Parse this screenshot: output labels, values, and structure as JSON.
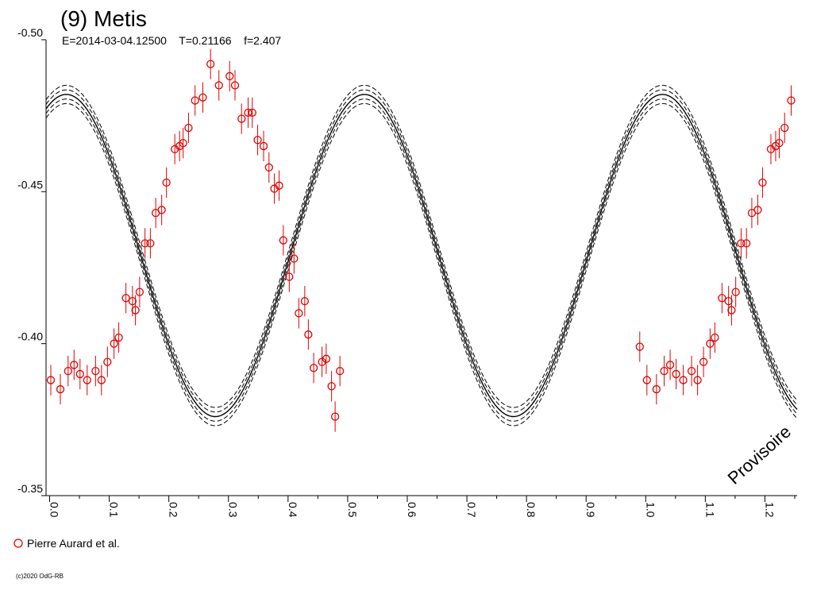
{
  "chart_data": {
    "type": "scatter",
    "title": "(9) Metis",
    "subtitle": "E=2014-03-04.12500    T=0.21166    f=2.407",
    "watermark": "Provisoire",
    "copyright": "(c)2020 OdG-RB",
    "xlim": [
      -0.006,
      1.254
    ],
    "ylim": [
      -0.5,
      -0.35
    ],
    "y_reversed": true,
    "yticks": [
      "-0.50",
      "-0.45",
      "-0.40",
      "-0.35"
    ],
    "ytick_values": [
      -0.5,
      -0.45,
      -0.4,
      -0.35
    ],
    "xticks": [
      "0.0",
      "0.1",
      "0.2",
      "0.3",
      "0.4",
      "0.5",
      "0.6",
      "0.7",
      "0.8",
      "0.9",
      "1.0",
      "1.1",
      "1.2"
    ],
    "xtick_values": [
      0.0,
      0.1,
      0.2,
      0.3,
      0.4,
      0.5,
      0.6,
      0.7,
      0.8,
      0.9,
      1.0,
      1.1,
      1.2
    ],
    "grid": false,
    "legend_position": "bottom-left",
    "colors": {
      "points": "#e00000",
      "model": "#000000",
      "axes": "#000000"
    },
    "model": {
      "description_label": "",
      "mean": -0.429,
      "amplitude": 0.053,
      "min_phase": 0.028,
      "harmonics": 2,
      "envelope_offsets": [
        -0.0015,
        0.0015,
        -0.003,
        0.003
      ]
    },
    "series": [
      {
        "name": "Pierre Aurard et al.",
        "marker": "circle-open",
        "error_bar": 0.005,
        "points": [
          [
            0.002,
            -0.388
          ],
          [
            0.018,
            -0.385
          ],
          [
            0.031,
            -0.391
          ],
          [
            0.041,
            -0.393
          ],
          [
            0.051,
            -0.39
          ],
          [
            0.063,
            -0.388
          ],
          [
            0.077,
            -0.391
          ],
          [
            0.087,
            -0.388
          ],
          [
            0.097,
            -0.394
          ],
          [
            0.108,
            -0.4
          ],
          [
            0.116,
            -0.402
          ],
          [
            0.128,
            -0.415
          ],
          [
            0.139,
            -0.414
          ],
          [
            0.144,
            -0.411
          ],
          [
            0.151,
            -0.417
          ],
          [
            0.16,
            -0.433
          ],
          [
            0.169,
            -0.433
          ],
          [
            0.178,
            -0.443
          ],
          [
            0.188,
            -0.444
          ],
          [
            0.196,
            -0.453
          ],
          [
            0.21,
            -0.464
          ],
          [
            0.218,
            -0.465
          ],
          [
            0.224,
            -0.466
          ],
          [
            0.233,
            -0.471
          ],
          [
            0.244,
            -0.48
          ],
          [
            0.257,
            -0.481
          ],
          [
            0.27,
            -0.492
          ],
          [
            0.284,
            -0.485
          ],
          [
            0.302,
            -0.488
          ],
          [
            0.311,
            -0.485
          ],
          [
            0.322,
            -0.474
          ],
          [
            0.333,
            -0.476
          ],
          [
            0.34,
            -0.476
          ],
          [
            0.349,
            -0.467
          ],
          [
            0.359,
            -0.465
          ],
          [
            0.368,
            -0.458
          ],
          [
            0.377,
            -0.451
          ],
          [
            0.385,
            -0.452
          ],
          [
            0.392,
            -0.434
          ],
          [
            0.402,
            -0.422
          ],
          [
            0.41,
            -0.428
          ],
          [
            0.418,
            -0.41
          ],
          [
            0.428,
            -0.414
          ],
          [
            0.434,
            -0.403
          ],
          [
            0.443,
            -0.392
          ],
          [
            0.457,
            -0.394
          ],
          [
            0.464,
            -0.395
          ],
          [
            0.473,
            -0.386
          ],
          [
            0.479,
            -0.376
          ],
          [
            0.487,
            -0.391
          ],
          [
            0.99,
            -0.399
          ],
          [
            1.002,
            -0.388
          ],
          [
            1.018,
            -0.385
          ],
          [
            1.031,
            -0.391
          ],
          [
            1.041,
            -0.393
          ],
          [
            1.051,
            -0.39
          ],
          [
            1.063,
            -0.388
          ],
          [
            1.077,
            -0.391
          ],
          [
            1.087,
            -0.388
          ],
          [
            1.097,
            -0.394
          ],
          [
            1.108,
            -0.4
          ],
          [
            1.116,
            -0.402
          ],
          [
            1.128,
            -0.415
          ],
          [
            1.139,
            -0.414
          ],
          [
            1.144,
            -0.411
          ],
          [
            1.151,
            -0.417
          ],
          [
            1.16,
            -0.433
          ],
          [
            1.169,
            -0.433
          ],
          [
            1.178,
            -0.443
          ],
          [
            1.188,
            -0.444
          ],
          [
            1.196,
            -0.453
          ],
          [
            1.21,
            -0.464
          ],
          [
            1.218,
            -0.465
          ],
          [
            1.224,
            -0.466
          ],
          [
            1.233,
            -0.471
          ],
          [
            1.244,
            -0.48
          ]
        ]
      }
    ]
  }
}
